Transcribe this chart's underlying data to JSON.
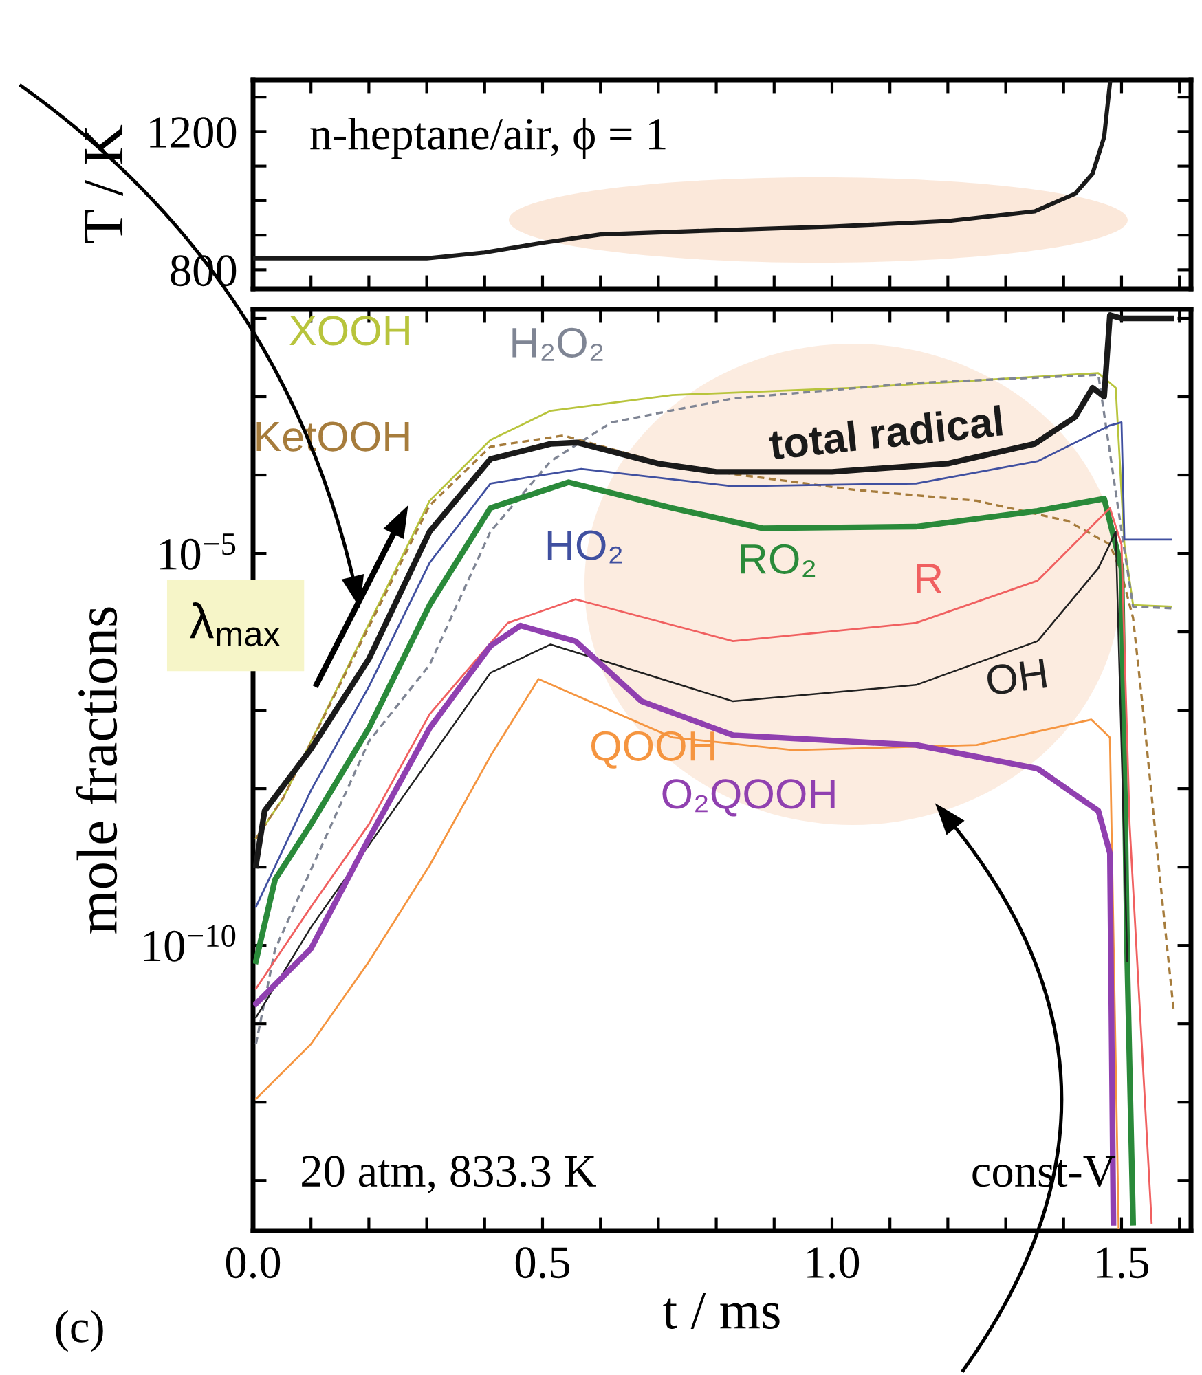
{
  "chart_data": [
    {
      "type": "line",
      "ylabel": "T / K",
      "xlim": [
        0,
        1.62
      ],
      "ylim": [
        745,
        1350
      ],
      "tick_labels": "y",
      "xticks": [
        {
          "value": 0,
          "label": null
        },
        {
          "value": 0.1,
          "label": null
        },
        {
          "value": 0.2,
          "label": null
        },
        {
          "value": 0.3,
          "label": null
        },
        {
          "value": 0.4,
          "label": null
        },
        {
          "value": 0.5,
          "label": null
        },
        {
          "value": 0.6,
          "label": null
        },
        {
          "value": 0.7,
          "label": null
        },
        {
          "value": 0.8,
          "label": null
        },
        {
          "value": 0.9,
          "label": null
        },
        {
          "value": 1.0,
          "label": null
        },
        {
          "value": 1.1,
          "label": null
        },
        {
          "value": 1.2,
          "label": null
        },
        {
          "value": 1.3,
          "label": null
        },
        {
          "value": 1.4,
          "label": null
        },
        {
          "value": 1.5,
          "label": null
        },
        {
          "value": 1.6,
          "label": null
        }
      ],
      "yticks": [
        800,
        {
          "value": 900,
          "label": null
        },
        {
          "value": 1000,
          "label": null
        },
        {
          "value": 1100,
          "label": null
        },
        1200,
        {
          "value": 1300,
          "label": null
        }
      ],
      "annotations": [
        "n-heptane/air, ϕ = 1"
      ],
      "series": [
        {
          "color": "#1a1a1a",
          "x": [
            0,
            0.3,
            0.4,
            0.5,
            0.6,
            0.8,
            1.0,
            1.2,
            1.35,
            1.42,
            1.45,
            1.47,
            1.48
          ],
          "values": [
            833,
            833,
            850,
            878,
            902,
            914,
            925,
            941,
            969,
            1020,
            1078,
            1184,
            1340
          ]
        }
      ]
    },
    {
      "type": "line",
      "log": "y",
      "xlabel": "t / ms",
      "ylabel": "mole fractions",
      "xlim": [
        0,
        1.62
      ],
      "ylim": [
        2.3e-14,
        0.013
      ],
      "xticks": [
        {
          "value": 0,
          "label": "0.0"
        },
        {
          "value": 0.1,
          "label": null
        },
        {
          "value": 0.2,
          "label": null
        },
        {
          "value": 0.3,
          "label": null
        },
        {
          "value": 0.4,
          "label": null
        },
        {
          "value": 0.5,
          "label": "0.5"
        },
        {
          "value": 0.6,
          "label": null
        },
        {
          "value": 0.7,
          "label": null
        },
        {
          "value": 0.8,
          "label": null
        },
        {
          "value": 0.9,
          "label": null
        },
        {
          "value": 1.0,
          "label": "1.0"
        },
        {
          "value": 1.1,
          "label": null
        },
        {
          "value": 1.2,
          "label": null
        },
        {
          "value": 1.3,
          "label": null
        },
        {
          "value": 1.4,
          "label": null
        },
        {
          "value": 1.5,
          "label": "1.5"
        },
        {
          "value": 1.6,
          "label": null
        }
      ],
      "yticks": [
        {
          "value": 1e-13,
          "label": null
        },
        {
          "value": 1e-12,
          "label": null
        },
        {
          "value": 1e-11,
          "label": null
        },
        {
          "value": 1e-10,
          "label": "10$^{−10}$"
        },
        {
          "value": 1e-09,
          "label": null
        },
        {
          "value": 1e-08,
          "label": null
        },
        {
          "value": 1e-07,
          "label": null
        },
        {
          "value": 1e-06,
          "label": null
        },
        {
          "value": 1e-05,
          "label": "10$^{−5}$"
        },
        {
          "value": 0.0001,
          "label": null
        },
        {
          "value": 0.001,
          "label": null
        },
        {
          "value": 0.01,
          "label": null
        }
      ],
      "annotations": [
        "20 atm, 833.3 K",
        "const-V",
        "(c)",
        "λ$_{max}$"
      ],
      "series": [
        {
          "name": "XOOH",
          "color": "#b8c43c",
          "x": [
            0.005,
            0.052,
            0.305,
            0.41,
            0.514,
            0.724,
            1.038,
            1.355,
            1.46,
            1.49,
            1.505,
            1.52,
            1.586
          ],
          "values": [
            2.3e-09,
            7.6e-09,
            4.7e-05,
            0.00028,
            0.00066,
            0.00105,
            0.0013,
            0.0018,
            0.002,
            0.0013,
            1.3e-05,
            2.2e-06,
            2.1e-06
          ]
        },
        {
          "name": "H₂O₂",
          "color": "#7f8594",
          "line_style": "dashed",
          "x": [
            0.005,
            0.038,
            0.2,
            0.305,
            0.41,
            0.514,
            0.619,
            0.829,
            1.145,
            1.46,
            1.505,
            1.52,
            1.586
          ],
          "values": [
            5.5e-12,
            8.9e-11,
            4e-08,
            3.8e-07,
            1.9e-05,
            0.00015,
            0.00047,
            0.00095,
            0.0015,
            0.0019,
            1.1e-05,
            2.1e-06,
            2e-06
          ]
        },
        {
          "name": "KetOOH",
          "color": "#a67c3c",
          "line_style": "dashed",
          "x": [
            0.005,
            0.052,
            0.305,
            0.41,
            0.536,
            0.724,
            1.038,
            1.25,
            1.407,
            1.48,
            1.5,
            1.52,
            1.538,
            1.562,
            1.59
          ],
          "values": [
            2.3e-09,
            7.6e-09,
            4.1e-05,
            0.00023,
            0.00032,
            0.00013,
            6.5e-05,
            4.7e-05,
            2.6e-05,
            1.3e-05,
            5.5e-06,
            1.5e-06,
            8.9e-08,
            1.5e-09,
            1.5e-11
          ]
        },
        {
          "name": "total radical",
          "color": "#1a1a1a",
          "x": [
            0.005,
            0.02,
            0.1,
            0.2,
            0.305,
            0.41,
            0.514,
            0.56,
            0.7,
            0.8,
            1.0,
            1.2,
            1.35,
            1.42,
            1.45,
            1.47,
            1.48,
            1.5,
            1.586
          ],
          "values": [
            1.05e-09,
            5.2e-09,
            3.2e-08,
            4.5e-07,
            1.9e-05,
            0.00016,
            0.00025,
            0.00026,
            0.00014,
            0.00011,
            0.00011,
            0.00014,
            0.00025,
            0.00055,
            0.0013,
            0.001,
            0.011,
            0.01,
            0.01
          ]
        },
        {
          "name": "HO₂",
          "color": "#4050a0",
          "x": [
            0.005,
            0.1,
            0.2,
            0.305,
            0.41,
            0.567,
            0.829,
            1.145,
            1.355,
            1.48,
            1.5,
            1.505,
            1.586
          ],
          "values": [
            3.1e-10,
            9.5e-09,
            2e-07,
            7.6e-06,
            7.8e-05,
            0.00012,
            7.2e-05,
            7.8e-05,
            0.00015,
            0.00043,
            0.00047,
            1.5e-05,
            1.5e-05
          ]
        },
        {
          "name": "RO₂",
          "color": "#2a8a3a",
          "x": [
            0.005,
            0.038,
            0.1,
            0.2,
            0.305,
            0.41,
            0.545,
            0.724,
            0.88,
            1.145,
            1.355,
            1.47,
            1.5,
            1.51,
            1.52
          ],
          "values": [
            6.3e-11,
            6.9e-10,
            3.5e-09,
            5.9e-08,
            2.2e-06,
            3.8e-05,
            8.1e-05,
            3.8e-05,
            2.1e-05,
            2.2e-05,
            3.5e-05,
            5e-05,
            6.5e-06,
            6.2e-11,
            2.9e-14
          ]
        },
        {
          "name": "R",
          "color": "#f06060",
          "x": [
            0.005,
            0.1,
            0.2,
            0.305,
            0.44,
            0.557,
            0.829,
            1.145,
            1.355,
            1.48,
            1.5,
            1.514,
            1.552
          ],
          "values": [
            2.8e-11,
            3.1e-10,
            3.5e-09,
            8.9e-08,
            1.3e-06,
            2.6e-06,
            7.6e-07,
            1.3e-06,
            4.5e-06,
            3.8e-05,
            1.3e-05,
            3.5e-09,
            2.9e-14
          ]
        },
        {
          "name": "OH",
          "color": "#202020",
          "x": [
            0.005,
            0.1,
            0.2,
            0.41,
            0.514,
            0.829,
            1.145,
            1.355,
            1.46,
            1.49,
            1.51
          ],
          "values": [
            1.2e-11,
            1.7e-10,
            1.9e-09,
            3e-07,
            6.9e-07,
            1.3e-07,
            2.1e-07,
            7.6e-07,
            6.5e-06,
            1.9e-05,
            6.2e-11
          ]
        },
        {
          "name": "QOOH",
          "color": "#f59540",
          "x": [
            0.005,
            0.1,
            0.2,
            0.305,
            0.41,
            0.493,
            0.724,
            0.933,
            1.25,
            1.448,
            1.48,
            1.495
          ],
          "values": [
            1.1e-12,
            5.5e-12,
            6.2e-11,
            1.05e-09,
            2.6e-08,
            2.5e-07,
            4.5e-08,
            3.1e-08,
            3.6e-08,
            7.6e-08,
            4.5e-08,
            2.5e-14
          ]
        },
        {
          "name": "O₂QOOH",
          "color": "#9040b0",
          "x": [
            0.005,
            0.1,
            0.2,
            0.305,
            0.41,
            0.462,
            0.557,
            0.671,
            0.829,
            1.145,
            1.355,
            1.46,
            1.48,
            1.486
          ],
          "values": [
            1.8e-11,
            9.1e-11,
            2.3e-09,
            5.9e-08,
            6.6e-07,
            1.2e-06,
            7.6e-07,
            1.3e-07,
            4.8e-08,
            3.6e-08,
            1.8e-08,
            5.2e-09,
            1.5e-09,
            2.9e-14
          ]
        }
      ]
    }
  ]
}
